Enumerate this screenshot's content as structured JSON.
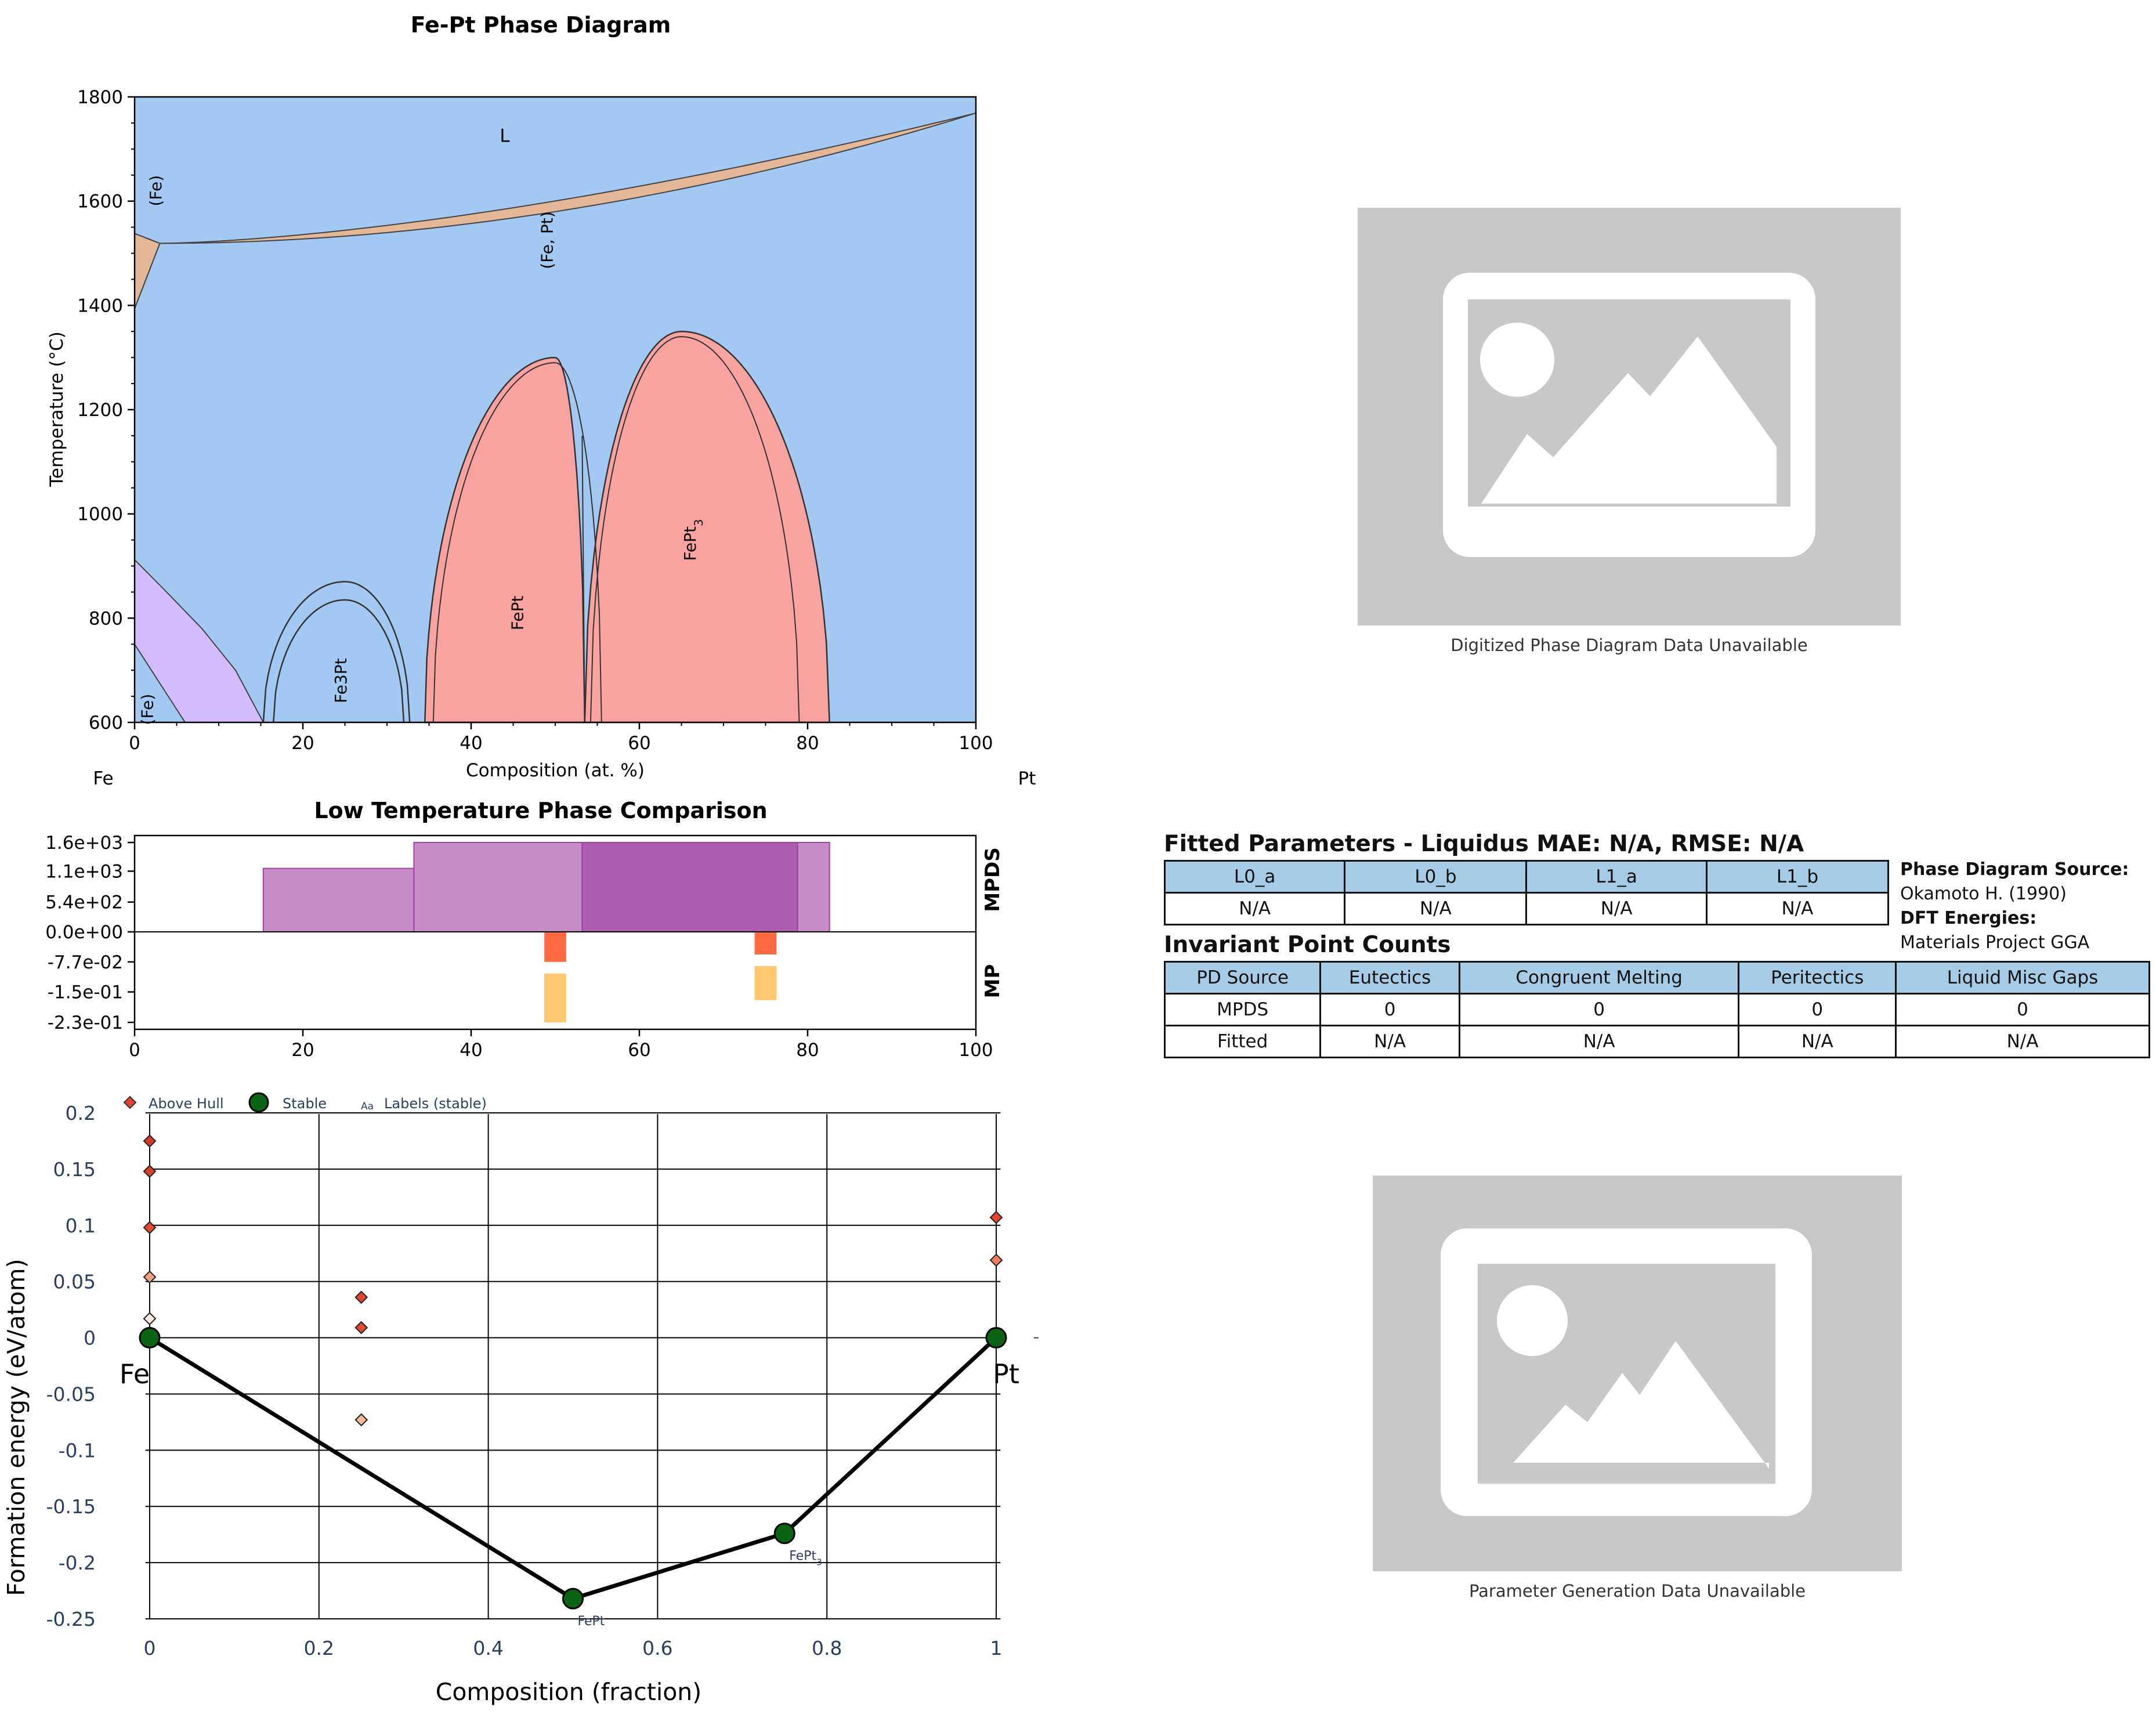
{
  "phase_diagram": {
    "title": "Fe-Pt Phase Diagram",
    "xlabel": "Composition (at. %)",
    "ylabel": "Temperature (°C)",
    "left_element": "Fe",
    "right_element": "Pt",
    "colors": {
      "liquid": "#a3c9f3",
      "solid_solution": "#e3b797",
      "intermetallic": "#f8a3a0",
      "bcc": "#d4bcfc"
    }
  },
  "comparison": {
    "title": "Low Temperature Phase Comparison",
    "row_labels": {
      "top": "MPDS",
      "bottom": "MP"
    },
    "colors": {
      "mpds": "#a040a0",
      "mp_top": "#ff5a30",
      "mp_bottom": "#ffc060"
    }
  },
  "hull": {
    "legend": {
      "above": "Above Hull",
      "stable": "Stable",
      "labels_icon": "Aa",
      "labels": "Labels (stable)"
    },
    "xlabel": "Composition (fraction)",
    "ylabel": "Formation energy (eV/atom)",
    "end_labels": {
      "left": "Fe",
      "right": "Pt"
    },
    "colors": {
      "stable": "#0a6414",
      "hull_line": "#000000",
      "above_hull": "#e2412e"
    }
  },
  "placeholders": {
    "top_caption": "Digitized Phase Diagram Data Unavailable",
    "bottom_caption": "Parameter Generation Data Unavailable"
  },
  "fitted": {
    "title": "Fitted Parameters - Liquidus MAE: N/A, RMSE: N/A",
    "headers": [
      "L0_a",
      "L0_b",
      "L1_a",
      "L1_b"
    ],
    "values": [
      "N/A",
      "N/A",
      "N/A",
      "N/A"
    ]
  },
  "source": {
    "pd_label": "Phase Diagram Source:",
    "pd_value": "Okamoto H. (1990)",
    "dft_label": "DFT Energies:",
    "dft_value": "Materials Project GGA"
  },
  "invariant": {
    "title": "Invariant Point Counts",
    "headers": [
      "PD Source",
      "Eutectics",
      "Congruent Melting",
      "Peritectics",
      "Liquid Misc Gaps"
    ],
    "rows": [
      [
        "MPDS",
        "0",
        "0",
        "0",
        "0"
      ],
      [
        "Fitted",
        "N/A",
        "N/A",
        "N/A",
        "N/A"
      ]
    ]
  },
  "chart_data": [
    {
      "type": "area",
      "title": "Fe-Pt Phase Diagram",
      "xlabel": "Composition (at. %)",
      "ylabel": "Temperature (°C)",
      "xlim": [
        0,
        100
      ],
      "ylim": [
        600,
        1800
      ],
      "xticks": [
        0,
        20,
        40,
        60,
        80,
        100
      ],
      "yticks": [
        600,
        800,
        1000,
        1200,
        1400,
        1600,
        1800
      ],
      "regions": [
        {
          "name": "L",
          "label_at": [
            44,
            1725
          ]
        },
        {
          "name": "(Fe)",
          "label_at": [
            2.5,
            1620
          ]
        },
        {
          "name": "(Fe, Pt)",
          "label_at": [
            49,
            1525
          ]
        },
        {
          "name": "FePt3",
          "label_at": [
            66,
            950
          ]
        },
        {
          "name": "FePt",
          "label_at": [
            45.5,
            810
          ]
        },
        {
          "name": "Fe3Pt",
          "label_at": [
            24.5,
            680
          ]
        },
        {
          "name": "(Fe)",
          "label_at": [
            1.5,
            625
          ]
        }
      ],
      "liquidus": [
        [
          0,
          1538
        ],
        [
          3,
          1519
        ],
        [
          20,
          1530
        ],
        [
          40,
          1565
        ],
        [
          60,
          1625
        ],
        [
          80,
          1690
        ],
        [
          100,
          1769
        ]
      ],
      "solidus": [
        [
          0,
          1538
        ],
        [
          3,
          1519
        ],
        [
          20,
          1521
        ],
        [
          40,
          1545
        ],
        [
          60,
          1595
        ],
        [
          80,
          1665
        ],
        [
          100,
          1769
        ]
      ],
      "fept_dome_max": [
        50,
        1300
      ],
      "fept3_dome_max": [
        65,
        1350
      ],
      "fe3pt_dome_max": [
        25,
        870
      ]
    },
    {
      "type": "bar",
      "title": "Low Temperature Phase Comparison",
      "xlim": [
        0,
        100
      ],
      "xticks": [
        0,
        20,
        40,
        60,
        80,
        100
      ],
      "yticks": [
        "1.6e+03",
        "1.1e+03",
        "5.4e+02",
        "0.0e+00",
        "-7.7e-02",
        "-1.5e-01",
        "-2.3e-01"
      ],
      "mpds_bars": [
        {
          "x0": 15.3,
          "x1": 33.2,
          "top": 1150
        },
        {
          "x0": 33.2,
          "x1": 53.2,
          "top": 1620
        },
        {
          "x0": 53.2,
          "x1": 78.8,
          "top": 1620
        },
        {
          "x0": 78.8,
          "x1": 82.6,
          "top": 1620
        }
      ],
      "mp_bars": [
        {
          "x0": 48.7,
          "x1": 51.3,
          "top_depth": -0.077,
          "bottom_depth": -0.232
        },
        {
          "x0": 73.7,
          "x1": 76.3,
          "top_depth": -0.058,
          "bottom_depth": -0.175
        }
      ]
    },
    {
      "type": "scatter",
      "xlabel": "Composition (fraction)",
      "ylabel": "Formation energy (eV/atom)",
      "xlim": [
        -0.05,
        1.05
      ],
      "ylim": [
        -0.25,
        0.2
      ],
      "xticks": [
        0,
        0.2,
        0.4,
        0.6,
        0.8,
        1
      ],
      "yticks": [
        0.2,
        0.15,
        0.1,
        0.05,
        0,
        -0.05,
        -0.1,
        -0.15,
        -0.2,
        -0.25
      ],
      "series": [
        {
          "name": "Stable",
          "points": [
            {
              "x": 0,
              "y": 0,
              "label": ""
            },
            {
              "x": 0.5,
              "y": -0.232,
              "label": "FePt"
            },
            {
              "x": 0.75,
              "y": -0.174,
              "label": "FePt3"
            },
            {
              "x": 1,
              "y": 0,
              "label": ""
            }
          ]
        },
        {
          "name": "Above Hull",
          "points": [
            {
              "x": 0,
              "y": 0.175,
              "c": "#d23a25"
            },
            {
              "x": 0,
              "y": 0.148,
              "c": "#d8432c"
            },
            {
              "x": 0,
              "y": 0.098,
              "c": "#e24a30"
            },
            {
              "x": 0,
              "y": 0.054,
              "c": "#f3a080"
            },
            {
              "x": 0,
              "y": 0.017,
              "c": "#fde8df"
            },
            {
              "x": 0.25,
              "y": 0.036,
              "c": "#e0472e"
            },
            {
              "x": 0.25,
              "y": 0.009,
              "c": "#e24a30"
            },
            {
              "x": 0.25,
              "y": -0.073,
              "c": "#f6b79a"
            },
            {
              "x": 1,
              "y": 0.107,
              "c": "#e2452b"
            },
            {
              "x": 1,
              "y": 0.069,
              "c": "#ee7d5f"
            }
          ]
        }
      ]
    }
  ]
}
